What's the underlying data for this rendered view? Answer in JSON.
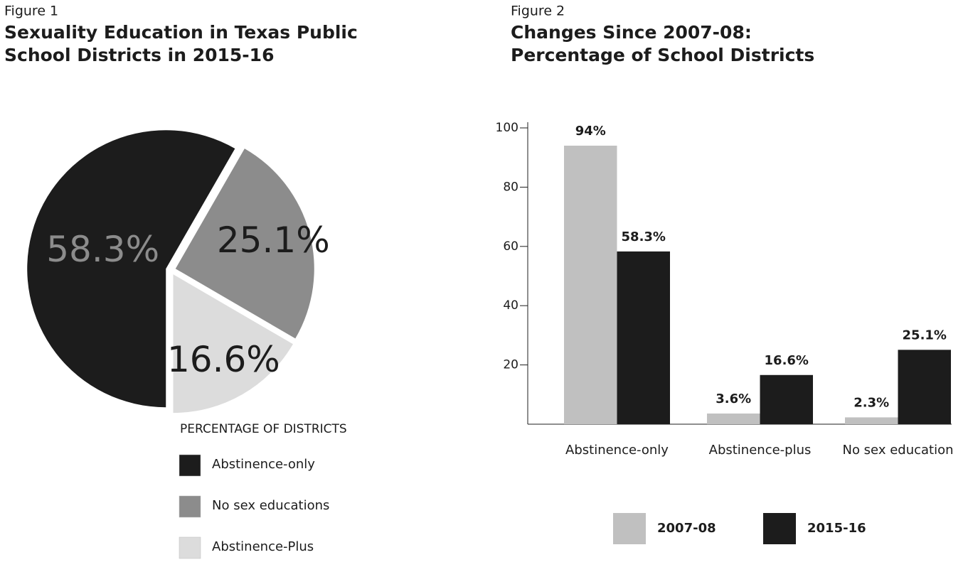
{
  "chart_data": [
    {
      "type": "pie",
      "figure_label": "Figure 1",
      "title": [
        "Sexuality Education in Texas Public",
        "School Districts in 2015-16"
      ],
      "legend_title": "PERCENTAGE OF DISTRICTS",
      "categories": [
        "Abstinence-only",
        "No sex educations",
        "Abstinence-Plus"
      ],
      "values": [
        58.3,
        25.1,
        16.6
      ],
      "value_labels": [
        "58.3%",
        "25.1%",
        "16.6%"
      ],
      "colors": [
        "#1c1c1c",
        "#8c8c8c",
        "#dcdcdc"
      ]
    },
    {
      "type": "bar",
      "figure_label": "Figure 2",
      "title": [
        "Changes Since 2007-08:",
        "Percentage of School Districts"
      ],
      "categories": [
        "Abstinence-only",
        "Abstinence-plus",
        "No sex education"
      ],
      "series": [
        {
          "name": "2007-08",
          "color": "#c0c0c0",
          "values": [
            94,
            3.6,
            2.3
          ],
          "value_labels": [
            "94%",
            "3.6%",
            "2.3%"
          ]
        },
        {
          "name": "2015-16",
          "color": "#1c1c1c",
          "values": [
            58.3,
            16.6,
            25.1
          ],
          "value_labels": [
            "58.3%",
            "16.6%",
            "25.1%"
          ]
        }
      ],
      "ylim": [
        0,
        100
      ],
      "yticks": [
        20,
        40,
        60,
        80,
        100
      ]
    }
  ]
}
